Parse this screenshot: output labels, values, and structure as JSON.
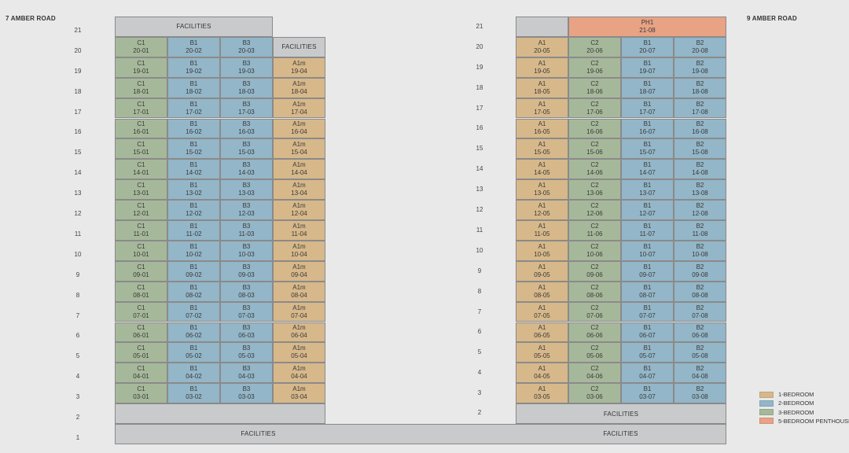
{
  "buildings": {
    "left_title": "7 AMBER ROAD",
    "right_title": "9 AMBER ROAD"
  },
  "colors": {
    "1-BEDROOM": "#d7b88a",
    "2-BEDROOM": "#93b6c8",
    "3-BEDROOM": "#a6b89a",
    "5-BEDROOM PENTHOUSE": "#e8a284",
    "facilities": "#c9cacb"
  },
  "legend": [
    {
      "label": "1-BEDROOM",
      "type": "1-BEDROOM"
    },
    {
      "label": "2-BEDROOM",
      "type": "2-BEDROOM"
    },
    {
      "label": "3-BEDROOM",
      "type": "3-BEDROOM"
    },
    {
      "label": "5-BEDROOM PENTHOUSE",
      "type": "5-BEDROOM PENTHOUSE"
    }
  ],
  "left_block": {
    "stacks": [
      {
        "type_label": "C1",
        "stack": "01",
        "category": "3-BEDROOM"
      },
      {
        "type_label": "B1",
        "stack": "02",
        "category": "2-BEDROOM"
      },
      {
        "type_label": "B3",
        "stack": "03",
        "category": "2-BEDROOM"
      },
      {
        "type_label": "A1m",
        "stack": "04",
        "category": "1-BEDROOM"
      }
    ],
    "top_floor": 20,
    "bottom_floor": 3,
    "facilities_21_label": "FACILITIES",
    "facilities_20_label": "FACILITIES"
  },
  "right_block": {
    "stacks": [
      {
        "type_label": "A1",
        "stack": "05",
        "category": "1-BEDROOM"
      },
      {
        "type_label": "C2",
        "stack": "06",
        "category": "3-BEDROOM"
      },
      {
        "type_label": "B1",
        "stack": "07",
        "category": "2-BEDROOM"
      },
      {
        "type_label": "B2",
        "stack": "08",
        "category": "2-BEDROOM"
      }
    ],
    "top_floor": 20,
    "bottom_floor": 3,
    "penthouse": {
      "type_label": "PH1",
      "unit": "21-08",
      "category": "5-BEDROOM PENTHOUSE"
    },
    "facilities_2_label": "FACILITIES"
  },
  "ground": {
    "left_label": "FACILITIES",
    "right_label": "FACILITIES"
  },
  "left_floor_labels": [
    "21",
    "20",
    "19",
    "18",
    "17",
    "16",
    "15",
    "14",
    "13",
    "12",
    "11",
    "10",
    "9",
    "8",
    "7",
    "6",
    "5",
    "4",
    "3",
    "2",
    "1"
  ],
  "right_floor_labels": [
    "21",
    "20",
    "19",
    "18",
    "17",
    "16",
    "15",
    "14",
    "13",
    "12",
    "11",
    "10",
    "9",
    "8",
    "7",
    "6",
    "5",
    "4",
    "3",
    "2"
  ]
}
